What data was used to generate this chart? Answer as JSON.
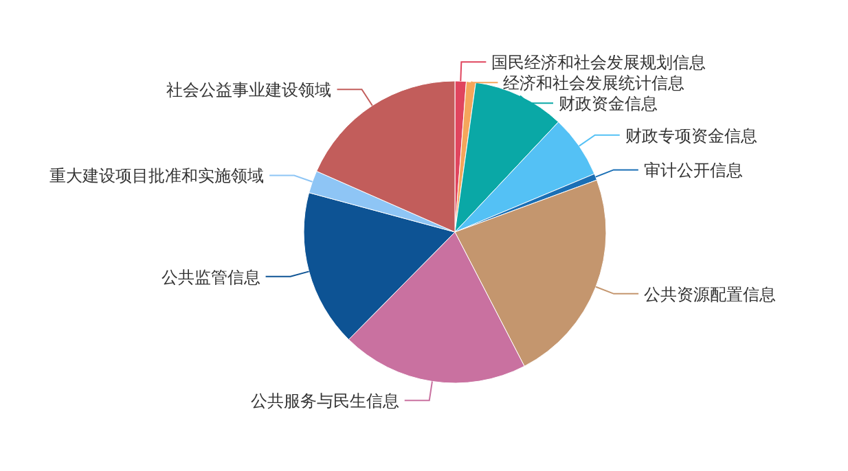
{
  "chart_data": {
    "type": "pie",
    "categories": [
      "国民经济和社会发展规划信息",
      "经济和社会发展统计信息",
      "财政资金信息",
      "财政专项资金信息",
      "审计公开信息",
      "公共资源配置信息",
      "公共服务与民生信息",
      "公共监管信息",
      "重大建设项目批准和实施领域",
      "社会公益事业建设领域"
    ],
    "values": [
      1.2,
      1.0,
      9.8,
      6.7,
      0.7,
      23.0,
      20.0,
      16.8,
      2.4,
      18.4
    ],
    "colors": [
      "#e0455e",
      "#f5a65b",
      "#0aa8a6",
      "#54c1f5",
      "#1a6fb5",
      "#c4966e",
      "#c971a0",
      "#0d5394",
      "#8ec5f5",
      "#c25d5b"
    ]
  }
}
